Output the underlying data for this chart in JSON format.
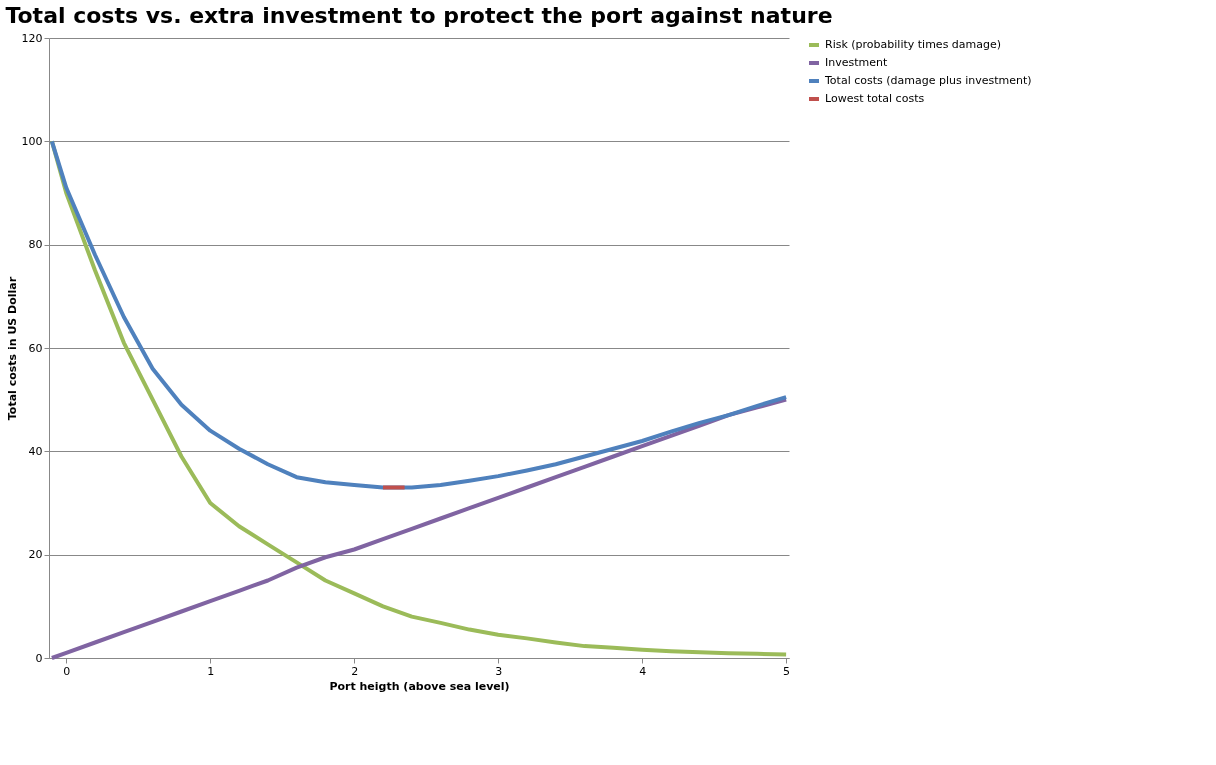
{
  "chart_data": {
    "type": "line",
    "title": "Total costs vs. extra investment to protect the port against nature",
    "xlabel": "Port heigth (above sea level)",
    "ylabel": "Total costs in US Dollar",
    "x": [
      -0.1,
      0,
      0.2,
      0.4,
      0.6,
      0.8,
      1.0,
      1.2,
      1.4,
      1.6,
      1.8,
      2.0,
      2.2,
      2.4,
      2.6,
      2.8,
      3.0,
      3.2,
      3.4,
      3.6,
      3.8,
      4.0,
      4.2,
      4.4,
      4.6,
      4.8,
      5.0
    ],
    "series": [
      {
        "name": "Risk (probability times damage)",
        "color": "#9bbb59",
        "values": [
          100,
          90,
          75,
          61,
          50,
          39,
          30,
          25.5,
          22,
          18.5,
          15,
          12.5,
          10,
          8,
          6.8,
          5.5,
          4.5,
          3.8,
          3,
          2.3,
          2,
          1.6,
          1.3,
          1.1,
          0.9,
          0.8,
          0.7
        ]
      },
      {
        "name": "Investment",
        "color": "#8064a2",
        "values": [
          0,
          1,
          3,
          5,
          7,
          9,
          11,
          13,
          15,
          17.5,
          19.5,
          21,
          23,
          25,
          27,
          29,
          31,
          33,
          35,
          37,
          39,
          41,
          43,
          45,
          47,
          48.5,
          50
        ]
      },
      {
        "name": "Total costs (damage plus investment)",
        "color": "#4f81bd",
        "values": [
          100,
          91,
          78,
          66,
          56,
          49,
          44,
          40.5,
          37.5,
          35,
          34,
          33.5,
          33,
          33,
          33.5,
          34.3,
          35.2,
          36.3,
          37.5,
          39,
          40.5,
          42,
          43.8,
          45.5,
          47,
          48.8,
          50.5
        ]
      },
      {
        "name": "Lowest total costs",
        "color": "#c0504d",
        "x": [
          2.2,
          2.35
        ],
        "values": [
          33,
          33
        ]
      }
    ],
    "xlim": [
      -0.12,
      5.02
    ],
    "xticks": [
      0,
      1,
      2,
      3,
      4,
      5
    ],
    "ylim": [
      0,
      120
    ],
    "yticks": [
      0,
      20,
      40,
      60,
      80,
      100,
      120
    ],
    "grid": "y",
    "legend": "right",
    "marker": "none",
    "line_style": "solid"
  }
}
